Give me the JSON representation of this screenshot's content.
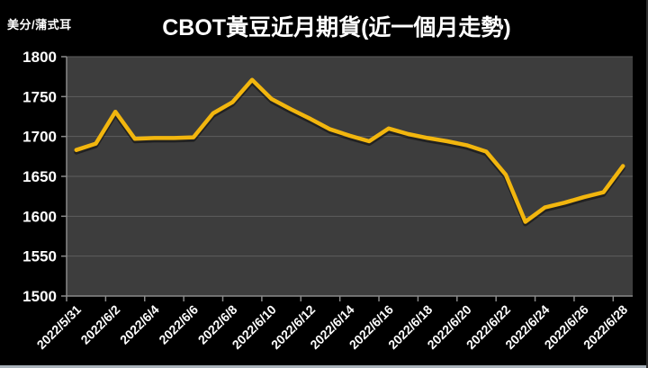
{
  "page": {
    "bg": "#000000",
    "bottom_strip_color": "#A9B2BA",
    "right_edge_color": "#2E2E2E"
  },
  "chart_data": {
    "type": "line",
    "title": "CBOT黃豆近月期貨(近一個月走勢)",
    "unit_label": "美分/蒲式耳",
    "x": [
      "2022/5/31",
      "2022/6/1",
      "2022/6/2",
      "2022/6/3",
      "2022/6/4",
      "2022/6/5",
      "2022/6/6",
      "2022/6/7",
      "2022/6/8",
      "2022/6/9",
      "2022/6/10",
      "2022/6/11",
      "2022/6/12",
      "2022/6/13",
      "2022/6/14",
      "2022/6/15",
      "2022/6/16",
      "2022/6/17",
      "2022/6/18",
      "2022/6/19",
      "2022/6/20",
      "2022/6/21",
      "2022/6/22",
      "2022/6/23",
      "2022/6/24",
      "2022/6/25",
      "2022/6/26",
      "2022/6/27",
      "2022/6/28"
    ],
    "values": [
      1683,
      1691,
      1731,
      1697,
      1698,
      1698,
      1699,
      1729,
      1743,
      1771,
      1747,
      1734,
      1722,
      1709,
      1701,
      1694,
      1710,
      1703,
      1698,
      1694,
      1689,
      1681,
      1652,
      1593,
      1611,
      1617,
      1624,
      1630,
      1663
    ],
    "x_tick_labels": [
      "2022/5/31",
      "2022/6/2",
      "2022/6/4",
      "2022/6/6",
      "2022/6/8",
      "2022/6/10",
      "2022/6/12",
      "2022/6/14",
      "2022/6/16",
      "2022/6/18",
      "2022/6/20",
      "2022/6/22",
      "2022/6/24",
      "2022/6/26",
      "2022/6/28"
    ],
    "x_label_every": 2,
    "ylim": [
      1500,
      1800
    ],
    "y_ticks": [
      1500,
      1550,
      1600,
      1650,
      1700,
      1750,
      1800
    ],
    "grid": true,
    "legend": "none",
    "xlabel": "",
    "ylabel": "",
    "colors": {
      "line": "#F2B60E",
      "plot_bg": "#3D3D3D",
      "grid": "#5E5E5E",
      "axis": "#8A8A8A",
      "text": "#FFFFFF"
    }
  }
}
